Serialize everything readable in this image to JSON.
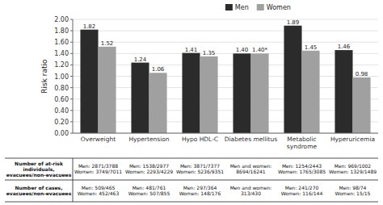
{
  "chart_data": {
    "type": "bar",
    "categories": [
      "Overweight",
      "Hypertension",
      "Hypo HDL-C",
      "Diabetes mellitus",
      "Metabolic\nsyndrome",
      "Hyperuricemia"
    ],
    "series": [
      {
        "name": "Men",
        "color": "#2b2b2b",
        "values": [
          1.82,
          1.24,
          1.41,
          1.4,
          1.89,
          1.46
        ],
        "value_labels": [
          "1.82",
          "1.24",
          "1.41",
          "1.40",
          "1.89",
          "1.46"
        ]
      },
      {
        "name": "Women",
        "color": "#a0a0a0",
        "values": [
          1.52,
          1.06,
          1.35,
          1.4,
          1.45,
          0.98
        ],
        "value_labels": [
          "1.52",
          "1.06",
          "1.35",
          "1.40*",
          "1.45",
          "0.98"
        ]
      }
    ],
    "y_label": "Risk ratio",
    "ylim": [
      0.0,
      2.0
    ],
    "yticks": [
      {
        "value": 0.0,
        "label": "0.00"
      },
      {
        "value": 0.2,
        "label": "0.20"
      },
      {
        "value": 0.4,
        "label": "0.40"
      },
      {
        "value": 0.6,
        "label": "0.60"
      },
      {
        "value": 0.8,
        "label": "0.80"
      },
      {
        "value": 1.0,
        "label": "1.00"
      },
      {
        "value": 1.2,
        "label": "1.20"
      },
      {
        "value": 1.4,
        "label": "1.40"
      },
      {
        "value": 1.6,
        "label": "1.60"
      },
      {
        "value": 1.8,
        "label": "1.80"
      },
      {
        "value": 2.0,
        "label": "2.00"
      }
    ],
    "grid": true,
    "legend": "top",
    "data_labels": true,
    "table": {
      "row_labels": [
        "Number of at-risk\nindividuals,\nevacuees/non-evacuees",
        "Number of cases,\nevacuees/non-evacuees"
      ],
      "cells": [
        [
          "Men: 2871/3788\nWomen: 3749/7011",
          "Men: 1538/2977\nWomen: 2293/4229",
          "Men: 3871/7377\nWomen: 5236/9351",
          "Men and women:\n8694/16241",
          "Men: 1254/2443\nWomen: 1765/3085",
          "Men: 969/1002\nWomen: 1329/1489"
        ],
        [
          "Men: 509/465\nWomen: 452/463",
          "Men: 481/761\nWomen: 507/855",
          "Men: 297/364\nWomen: 148/176",
          "Men and women:\n313/430",
          "Men: 241/270\nWomen: 116/144",
          "Men: 98/74\nWomen: 15/15"
        ]
      ]
    }
  }
}
